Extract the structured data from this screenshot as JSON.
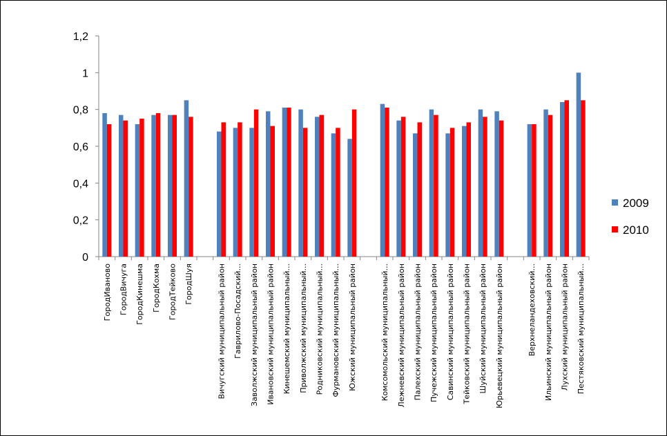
{
  "chart_data": {
    "type": "bar",
    "title": "",
    "xlabel": "",
    "ylabel": "",
    "ylim": [
      0,
      1.2
    ],
    "yticks": [
      "0",
      "0,2",
      "0,4",
      "0,6",
      "0,8",
      "1",
      "1,2"
    ],
    "grid": false,
    "legend_position": "right",
    "categories": [
      "ГородИваново",
      "ГородВичуга",
      "ГородКинешма",
      "ГородКохма",
      "ГородТейково",
      "ГородШуя",
      "",
      "Вичугский муниципальный район",
      "Гаврилово-Посадский...",
      "Заволжский муниципальный район",
      "Ивановский муниципальный район",
      "Кинешемский муниципальный...",
      "Приволжский муниципальный...",
      "Родниковский муниципальный...",
      "Фурмановский муниципальный...",
      "Южский муниципальный район",
      "",
      "Комсомольский муниципальный...",
      "Лежневский муниципальный район",
      "Палехский муниципальный район",
      "Пучежский муниципальный район",
      "Савинский муниципальный район",
      "Тейковский муниципальный район",
      "Шуйский муниципальный район",
      "Юрьевецкий муниципальный район",
      "",
      "Верхнеландеховский...",
      "Ильинский муниципальный район",
      "Лухский муниципальный район",
      "Пестяковский муниципальный..."
    ],
    "series": [
      {
        "name": "2009",
        "color": "#4F81BD",
        "values": [
          0.78,
          0.77,
          0.72,
          0.77,
          0.77,
          0.85,
          null,
          0.68,
          0.7,
          0.7,
          0.79,
          0.81,
          0.8,
          0.76,
          0.67,
          0.64,
          null,
          0.83,
          0.74,
          0.67,
          0.8,
          0.67,
          0.71,
          0.8,
          0.79,
          null,
          0.72,
          0.8,
          0.84,
          1.0
        ]
      },
      {
        "name": "2010",
        "color": "#FF0000",
        "values": [
          0.72,
          0.74,
          0.75,
          0.78,
          0.77,
          0.76,
          null,
          0.73,
          0.73,
          0.8,
          0.71,
          0.81,
          0.7,
          0.77,
          0.7,
          0.8,
          null,
          0.81,
          0.76,
          0.73,
          0.77,
          0.7,
          0.73,
          0.76,
          0.74,
          null,
          0.72,
          0.77,
          0.85,
          0.85
        ]
      }
    ]
  }
}
